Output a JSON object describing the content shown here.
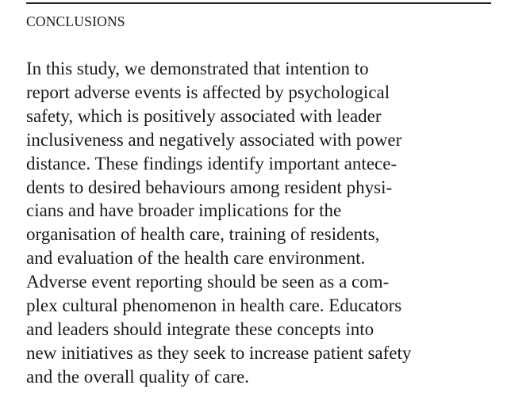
{
  "section": {
    "heading": "CONCLUSIONS",
    "lines": [
      "In this study, we demonstrated that intention to",
      "report adverse events is affected by psychological",
      "safety, which is positively associated with leader",
      "inclusiveness and negatively associated with power",
      "distance. These findings identify important antece-",
      "dents to desired behaviours among resident physi-",
      "cians and have broader implications for the",
      "organisation of health care, training of residents,",
      "and evaluation of the health care environment.",
      "Adverse event reporting should be seen as a com-",
      "plex cultural phenomenon in health care. Educators",
      "and leaders should integrate these concepts into",
      "new initiatives as they seek to increase patient safety",
      "and the overall quality of care."
    ]
  }
}
